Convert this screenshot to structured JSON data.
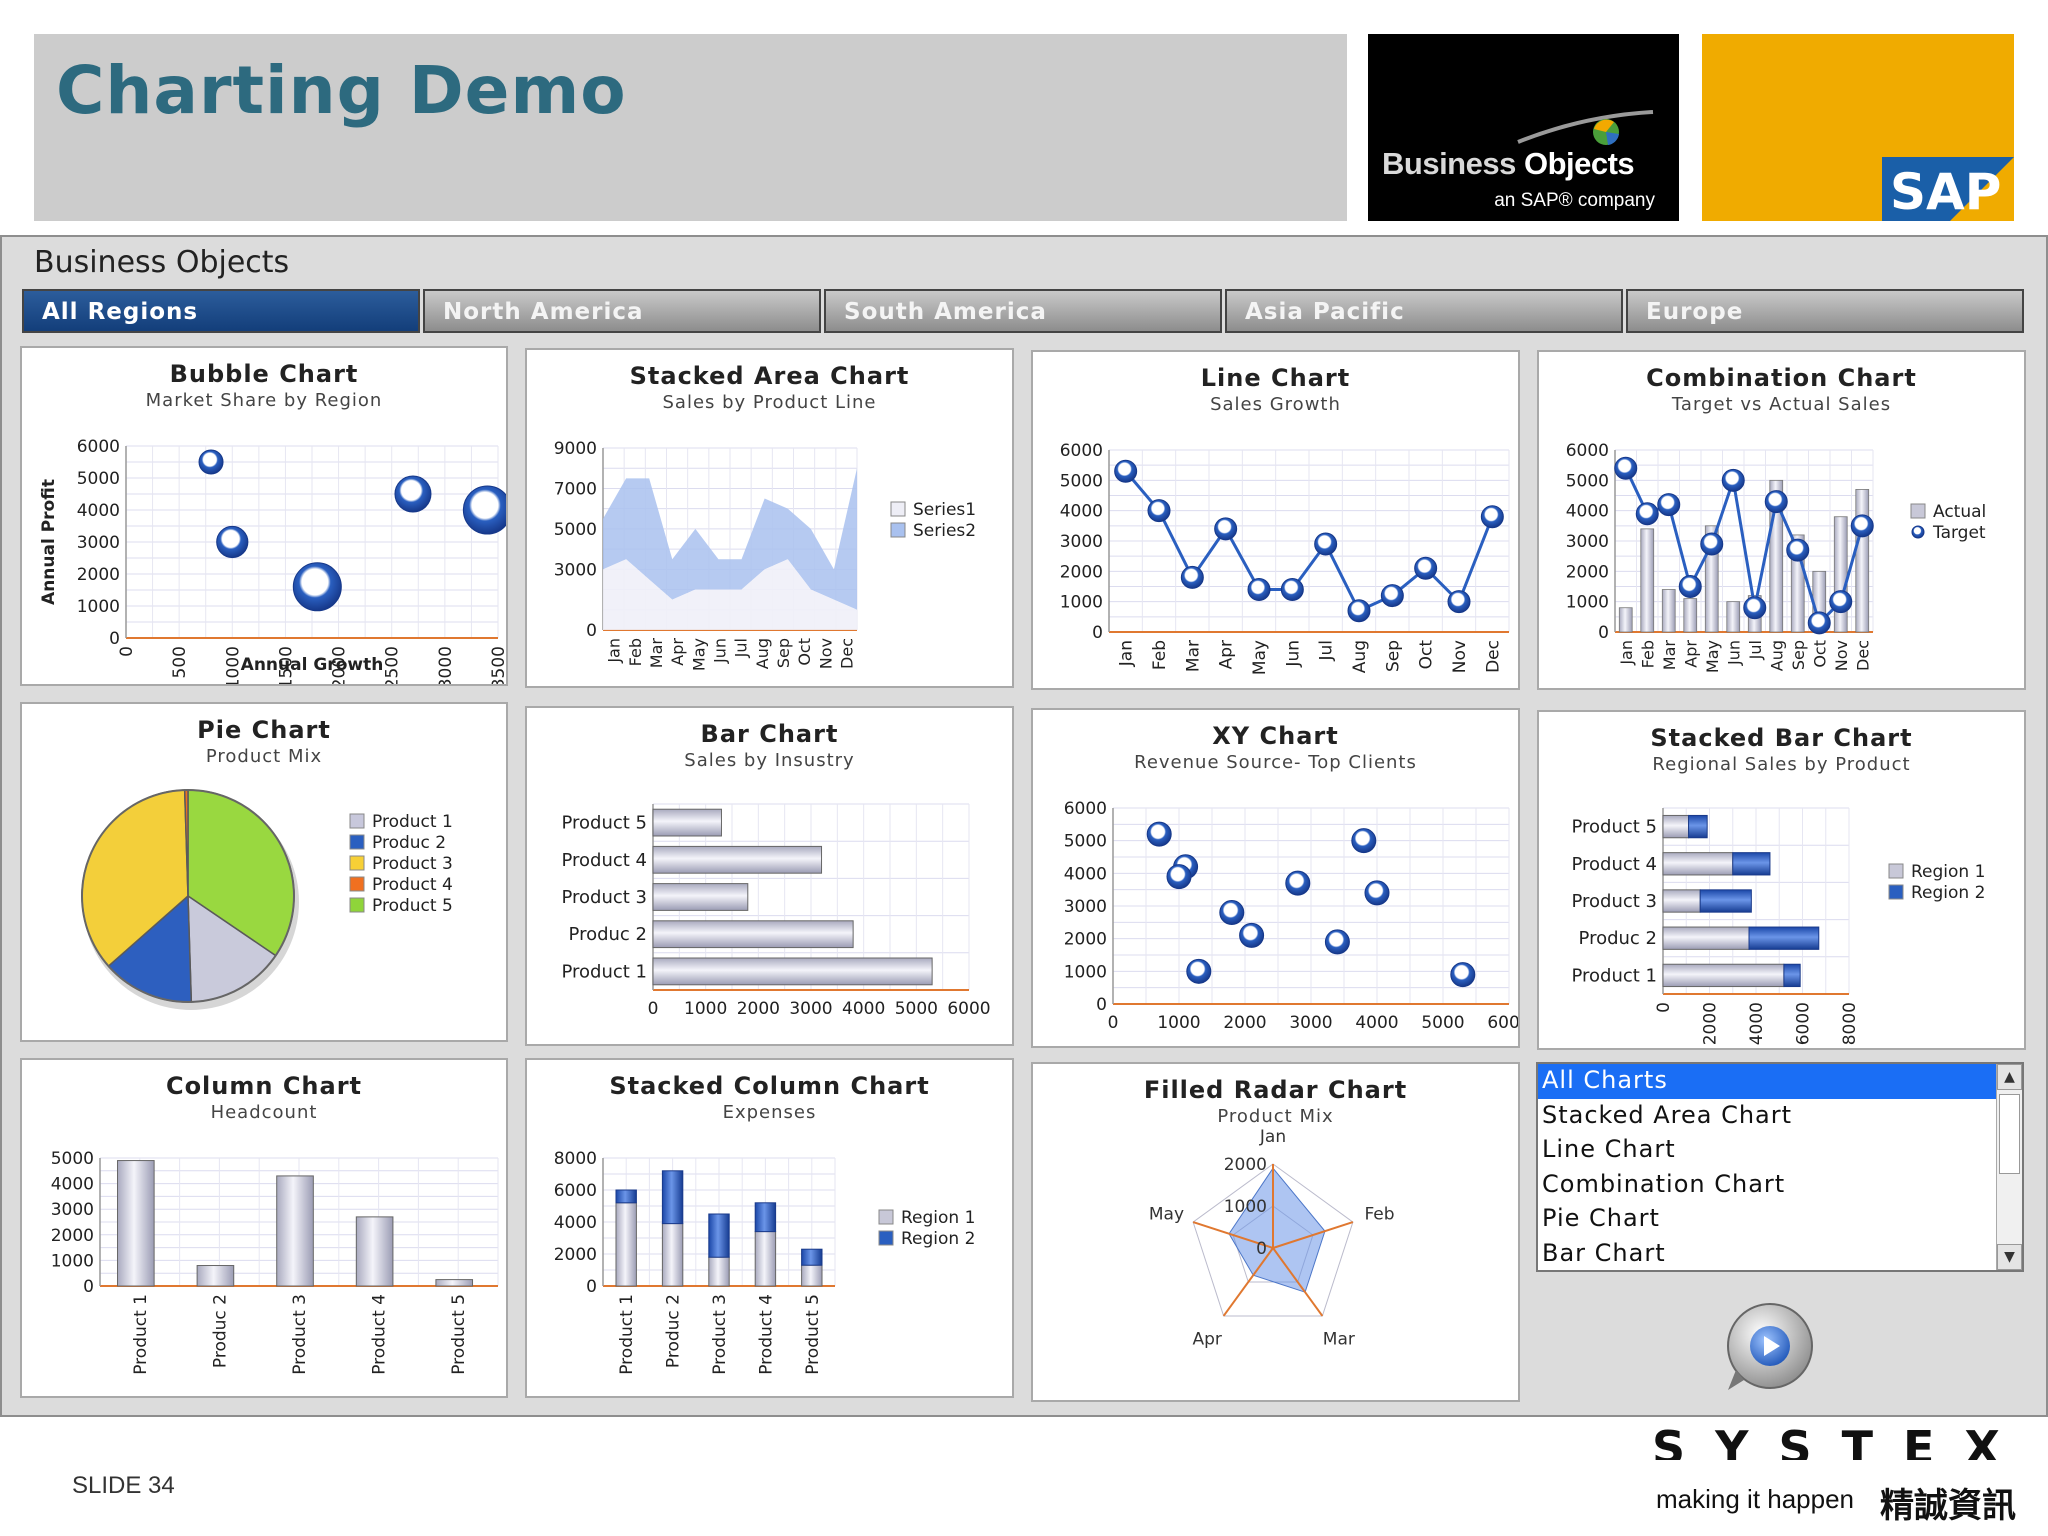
{
  "slide": {
    "title": "Charting Demo",
    "number": "SLIDE 34"
  },
  "logos": {
    "bo_brand_1": "Business ",
    "bo_brand_2": "Objects",
    "bo_tagline": "an SAP® company",
    "sap": "SAP",
    "systex": "SYSTEX",
    "systex_tagline": "making it happen",
    "systex_chinese": "精誠資訊"
  },
  "colors": {
    "header_gray": "#cccccc",
    "title_teal": "#2d6a7f",
    "sap_gold": "#f0ab00",
    "sap_blue": "#1a5fa8",
    "tab_active": "#1c4a8a",
    "series_blue": "#2a5fc0",
    "series_gray": "#c8c8d8",
    "axis_orange": "#e07830",
    "selection_blue": "#1a6ef5"
  },
  "dashboard": {
    "title": "Business Objects",
    "tabs": [
      {
        "label": "All Regions",
        "active": true
      },
      {
        "label": "North America",
        "active": false
      },
      {
        "label": "South America",
        "active": false
      },
      {
        "label": "Asia Pacific",
        "active": false
      },
      {
        "label": "Europe",
        "active": false
      }
    ],
    "list": {
      "items": [
        "All Charts",
        "Stacked Area Chart",
        "Line Chart",
        "Combination Chart",
        "Pie Chart",
        "Bar Chart"
      ],
      "selected_index": 0
    },
    "play_icon": "play-icon"
  },
  "chart_data": [
    {
      "id": "bubble",
      "type": "scatter",
      "title": "Bubble Chart",
      "subtitle": "Market Share by Region",
      "xlabel": "Annual Growth",
      "ylabel": "Annual Profit",
      "xlim": [
        0,
        3500
      ],
      "ylim": [
        0,
        6000
      ],
      "xticks": [
        0,
        500,
        1000,
        1500,
        2000,
        2500,
        3000,
        3500
      ],
      "yticks": [
        0,
        1000,
        2000,
        3000,
        4000,
        5000,
        6000
      ],
      "points": [
        {
          "x": 800,
          "y": 5500,
          "size": 1
        },
        {
          "x": 1000,
          "y": 3000,
          "size": 1.6
        },
        {
          "x": 1800,
          "y": 1600,
          "size": 3
        },
        {
          "x": 2700,
          "y": 4500,
          "size": 2
        },
        {
          "x": 3400,
          "y": 4000,
          "size": 3
        }
      ]
    },
    {
      "id": "stacked-area",
      "type": "area",
      "title": "Stacked Area Chart",
      "subtitle": "Sales by Product Line",
      "categories": [
        "Jan",
        "Feb",
        "Mar",
        "Apr",
        "May",
        "Jun",
        "Jul",
        "Aug",
        "Sep",
        "Oct",
        "Nov",
        "Dec"
      ],
      "ylim": [
        0,
        9000
      ],
      "yticks": [
        0,
        3000,
        5000,
        7000,
        9000
      ],
      "series": [
        {
          "name": "Series1",
          "values": [
            3000,
            3500,
            2500,
            1500,
            2000,
            2000,
            2000,
            3000,
            3500,
            2000,
            1500,
            1000
          ]
        },
        {
          "name": "Series2",
          "values": [
            2500,
            4000,
            5000,
            2000,
            3000,
            1500,
            1500,
            3500,
            2500,
            3000,
            1500,
            7000
          ]
        }
      ],
      "legend": "right"
    },
    {
      "id": "line",
      "type": "line",
      "title": "Line Chart",
      "subtitle": "Sales Growth",
      "categories": [
        "Jan",
        "Feb",
        "Mar",
        "Apr",
        "May",
        "Jun",
        "Jul",
        "Aug",
        "Sep",
        "Oct",
        "Nov",
        "Dec"
      ],
      "ylim": [
        0,
        6000
      ],
      "yticks": [
        0,
        1000,
        2000,
        3000,
        4000,
        5000,
        6000
      ],
      "values": [
        5300,
        4000,
        1800,
        3400,
        1400,
        1400,
        2900,
        700,
        1200,
        2100,
        1000,
        3800
      ]
    },
    {
      "id": "combination",
      "type": "bar",
      "title": "Combination Chart",
      "subtitle": "Target vs Actual Sales",
      "categories": [
        "Jan",
        "Feb",
        "Mar",
        "Apr",
        "May",
        "Jun",
        "Jul",
        "Aug",
        "Sep",
        "Oct",
        "Nov",
        "Dec"
      ],
      "ylim": [
        0,
        6000
      ],
      "yticks": [
        0,
        1000,
        2000,
        3000,
        4000,
        5000,
        6000
      ],
      "series": [
        {
          "name": "Actual",
          "kind": "bar",
          "values": [
            800,
            3400,
            1400,
            1100,
            3500,
            1000,
            1200,
            5000,
            3200,
            2000,
            3800,
            4700
          ]
        },
        {
          "name": "Target",
          "kind": "line",
          "values": [
            5400,
            3900,
            4200,
            1500,
            2900,
            5000,
            800,
            4300,
            2700,
            300,
            1000,
            3500
          ]
        }
      ],
      "legend": "right"
    },
    {
      "id": "pie",
      "type": "pie",
      "title": "Pie Chart",
      "subtitle": "Product Mix",
      "slices": [
        {
          "name": "Product 1",
          "value": 15
        },
        {
          "name": "Produc 2",
          "value": 14
        },
        {
          "name": "Product 3",
          "value": 36
        },
        {
          "name": "Product 4",
          "value": 0.5
        },
        {
          "name": "Product 5",
          "value": 34.5
        }
      ],
      "legend": "right"
    },
    {
      "id": "bar",
      "type": "bar",
      "orientation": "horizontal",
      "title": "Bar Chart",
      "subtitle": "Sales by Insustry",
      "categories": [
        "Product 1",
        "Produc 2",
        "Product 3",
        "Product 4",
        "Product 5"
      ],
      "values": [
        5300,
        3800,
        1800,
        3200,
        1300
      ],
      "xlim": [
        0,
        6000
      ],
      "xticks": [
        0,
        1000,
        2000,
        3000,
        4000,
        5000,
        6000
      ]
    },
    {
      "id": "xy",
      "type": "scatter",
      "title": "XY Chart",
      "subtitle": "Revenue Source- Top Clients",
      "xlim": [
        0,
        6000
      ],
      "ylim": [
        0,
        6000
      ],
      "xticks": [
        0,
        1000,
        2000,
        3000,
        4000,
        5000,
        6000
      ],
      "yticks": [
        0,
        1000,
        2000,
        3000,
        4000,
        5000,
        6000
      ],
      "points": [
        {
          "x": 700,
          "y": 5200
        },
        {
          "x": 1100,
          "y": 4200
        },
        {
          "x": 1000,
          "y": 3900
        },
        {
          "x": 1800,
          "y": 2800
        },
        {
          "x": 2100,
          "y": 2100
        },
        {
          "x": 2800,
          "y": 3700
        },
        {
          "x": 3400,
          "y": 1900
        },
        {
          "x": 3800,
          "y": 5000
        },
        {
          "x": 4000,
          "y": 3400
        },
        {
          "x": 1300,
          "y": 1000
        },
        {
          "x": 5300,
          "y": 900
        }
      ]
    },
    {
      "id": "stacked-bar",
      "type": "bar",
      "orientation": "horizontal",
      "stacked": true,
      "title": "Stacked Bar Chart",
      "subtitle": "Regional Sales by Product",
      "categories": [
        "Product 1",
        "Produc 2",
        "Product 3",
        "Product 4",
        "Product 5"
      ],
      "xlim": [
        0,
        8000
      ],
      "xticks": [
        0,
        2000,
        4000,
        6000,
        8000
      ],
      "series": [
        {
          "name": "Region 1",
          "values": [
            5200,
            3700,
            1600,
            3000,
            1100
          ]
        },
        {
          "name": "Region 2",
          "values": [
            700,
            3000,
            2200,
            1600,
            800
          ]
        }
      ],
      "legend": "right"
    },
    {
      "id": "column",
      "type": "bar",
      "title": "Column Chart",
      "subtitle": "Headcount",
      "categories": [
        "Product 1",
        "Produc 2",
        "Product 3",
        "Product 4",
        "Product 5"
      ],
      "values": [
        4900,
        800,
        4300,
        2700,
        250
      ],
      "ylim": [
        0,
        5000
      ],
      "yticks": [
        0,
        1000,
        2000,
        3000,
        4000,
        5000
      ]
    },
    {
      "id": "stacked-column",
      "type": "bar",
      "stacked": true,
      "title": "Stacked Column Chart",
      "subtitle": "Expenses",
      "categories": [
        "Product 1",
        "Produc 2",
        "Product 3",
        "Product 4",
        "Product 5"
      ],
      "ylim": [
        0,
        8000
      ],
      "yticks": [
        0,
        2000,
        4000,
        6000,
        8000
      ],
      "series": [
        {
          "name": "Region 1",
          "values": [
            5200,
            3900,
            1800,
            3400,
            1300
          ]
        },
        {
          "name": "Region 2",
          "values": [
            800,
            3300,
            2700,
            1800,
            1000
          ]
        }
      ],
      "legend": "right"
    },
    {
      "id": "radar",
      "type": "radar",
      "title": "Filled Radar Chart",
      "subtitle": "Product Mix",
      "categories": [
        "Jan",
        "Feb",
        "Mar",
        "Apr",
        "May"
      ],
      "rlim": [
        0,
        2000
      ],
      "rticks": [
        0,
        1000,
        2000
      ],
      "values": [
        1900,
        1300,
        1300,
        800,
        1100
      ]
    }
  ]
}
